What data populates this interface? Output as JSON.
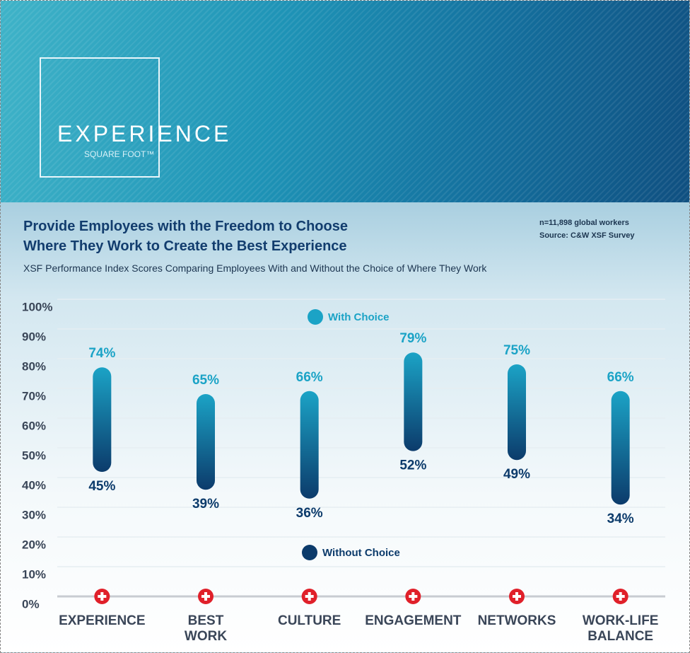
{
  "header": {
    "brand": "EXPERIENCE",
    "tagline": "SQUARE FOOT™"
  },
  "chart_data": {
    "type": "range",
    "title": "Provide Employees with the Freedom to Choose\nWhere They Work to Create the Best Experience",
    "subtitle": "XSF Performance Index Scores Comparing Employees With and Without the Choice of Where They Work",
    "notes": [
      "n=11,898 global workers",
      "Source: C&W XSF Survey"
    ],
    "categories": [
      "EXPERIENCE",
      "BEST\nWORK",
      "CULTURE",
      "ENGAGEMENT",
      "NETWORKS",
      "WORK-LIFE\nBALANCE"
    ],
    "series": [
      {
        "name": "With Choice",
        "color": "#1ba3c6",
        "values": [
          74,
          65,
          66,
          79,
          75,
          66
        ],
        "value_labels": [
          "74%",
          "65%",
          "66%",
          "79%",
          "75%",
          "66%"
        ]
      },
      {
        "name": "Without Choice",
        "color": "#0c3b6b",
        "values": [
          45,
          39,
          36,
          52,
          49,
          34
        ],
        "value_labels": [
          "45%",
          "39%",
          "36%",
          "52%",
          "49%",
          "34%"
        ]
      }
    ],
    "ylim": [
      0,
      100
    ],
    "yticks": [
      {
        "value": 0,
        "label": "0%"
      },
      {
        "value": 10,
        "label": "10%"
      },
      {
        "value": 20,
        "label": "20%"
      },
      {
        "value": 30,
        "label": "30%"
      },
      {
        "value": 40,
        "label": "40%"
      },
      {
        "value": 50,
        "label": "50%"
      },
      {
        "value": 60,
        "label": "60%"
      },
      {
        "value": 70,
        "label": "70%"
      },
      {
        "value": 80,
        "label": "80%"
      },
      {
        "value": 90,
        "label": "90%"
      },
      {
        "value": 100,
        "label": "100%"
      }
    ],
    "grid": true
  }
}
